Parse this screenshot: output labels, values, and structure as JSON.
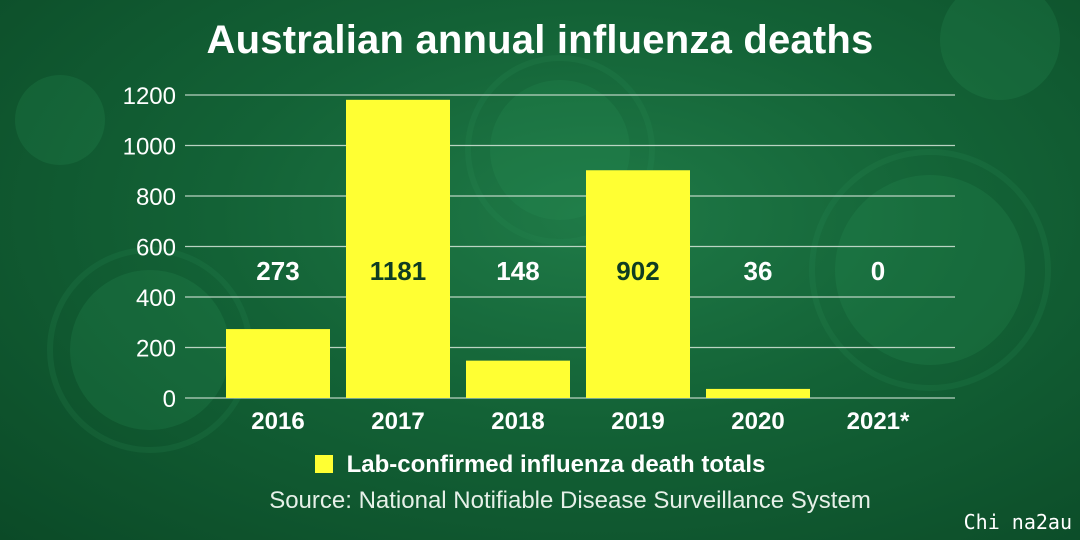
{
  "chart_data": {
    "type": "bar",
    "title": "Australian annual influenza deaths",
    "categories": [
      "2016",
      "2017",
      "2018",
      "2019",
      "2020",
      "2021*"
    ],
    "series": [
      {
        "name": "Lab-confirmed influenza death totals",
        "values": [
          273,
          1181,
          148,
          902,
          36,
          0
        ]
      }
    ],
    "data_labels": [
      "273",
      "1181",
      "148",
      "902",
      "36",
      "0"
    ],
    "ylim": [
      0,
      1200
    ],
    "yticks": [
      0,
      200,
      400,
      600,
      800,
      1000,
      1200
    ],
    "xlabel": "",
    "ylabel": "",
    "grid": true,
    "legend_position": "bottom",
    "bar_color": "#ffff33",
    "source": "Source: National Notifiable Disease Surveillance System"
  },
  "watermark": "Chi na2au"
}
